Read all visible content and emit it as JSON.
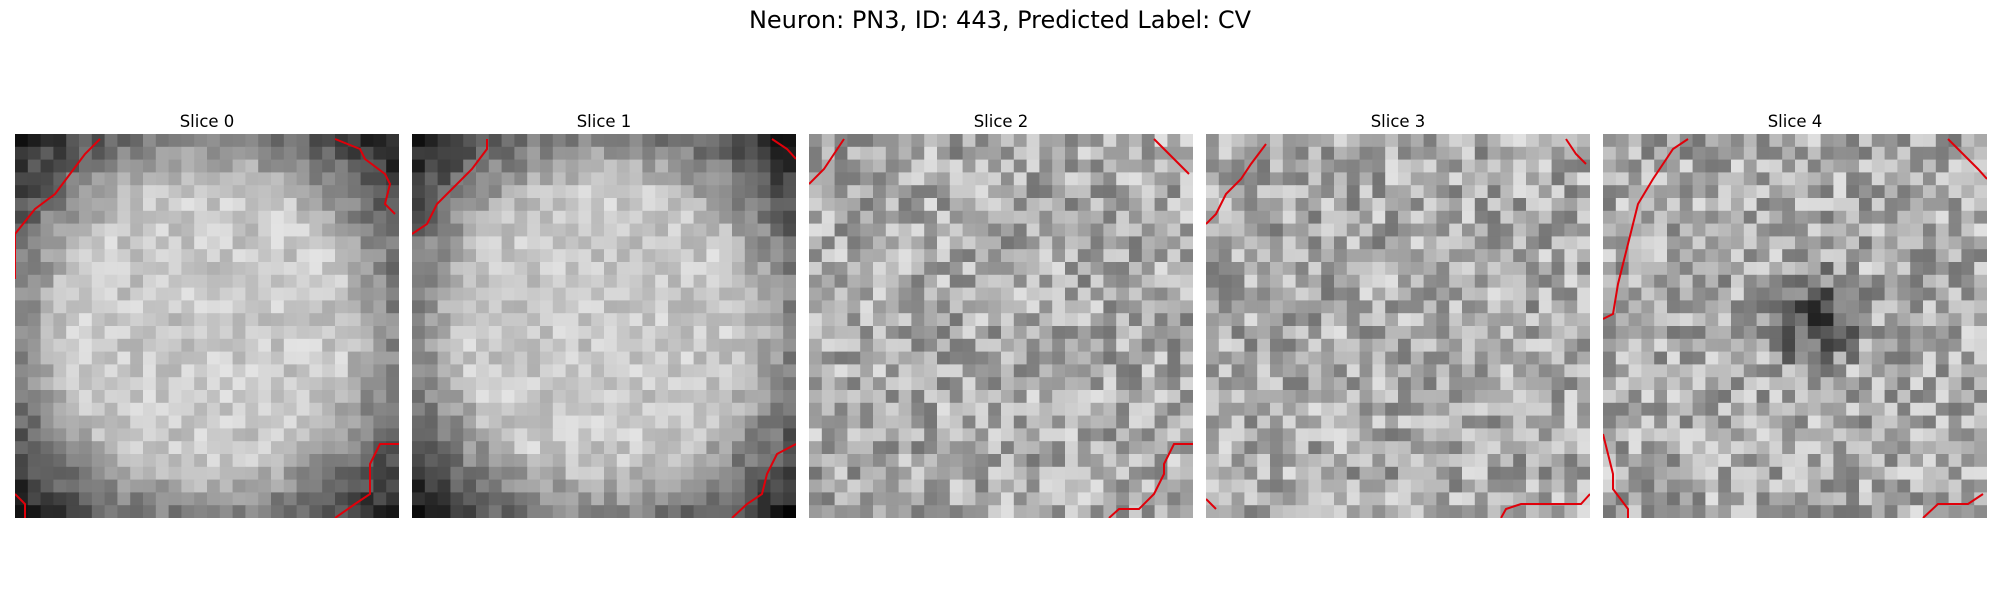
{
  "figure": {
    "title": "Neuron: PN3, ID: 443, Predicted Label: CV",
    "grid_size": 30,
    "colormap": "gray",
    "contour_color": "#e0000a",
    "panels": [
      {
        "title": "Slice 0",
        "seed": 11,
        "texture": "ring",
        "dark_center": false
      },
      {
        "title": "Slice 1",
        "seed": 23,
        "texture": "ring",
        "dark_center": false
      },
      {
        "title": "Slice 2",
        "seed": 37,
        "texture": "noisy",
        "dark_center": false
      },
      {
        "title": "Slice 3",
        "seed": 51,
        "texture": "noisy",
        "dark_center": false
      },
      {
        "title": "Slice 4",
        "seed": 67,
        "texture": "noisy",
        "dark_center": true
      }
    ]
  }
}
